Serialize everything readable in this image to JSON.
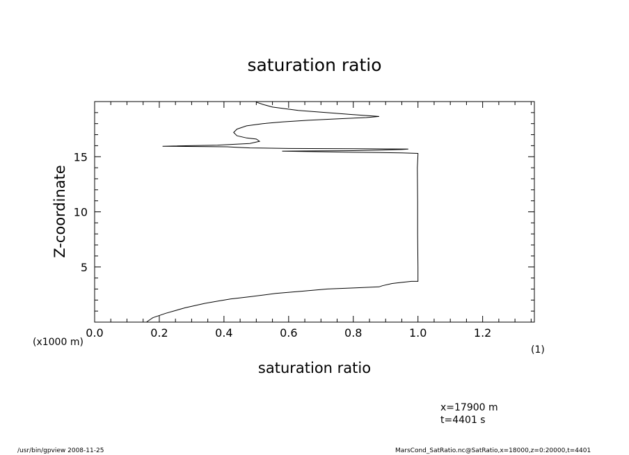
{
  "chart_data": {
    "type": "line",
    "title": "saturation ratio",
    "xlabel": "saturation ratio",
    "ylabel": "Z-coordinate",
    "x_unit_label": "(1)",
    "y_unit_label": "(x1000 m)",
    "xlim": [
      0.0,
      1.36
    ],
    "ylim": [
      0,
      20
    ],
    "xticks": [
      0.0,
      0.2,
      0.4,
      0.6,
      0.8,
      1.0,
      1.2
    ],
    "xtick_labels": [
      "0.0",
      "0.2",
      "0.4",
      "0.6",
      "0.8",
      "1.0",
      "1.2"
    ],
    "yticks": [
      5,
      10,
      15
    ],
    "ytick_labels": [
      "5",
      "10",
      "15"
    ],
    "grid": false,
    "series": [
      {
        "x": [
          0.16,
          0.18,
          0.22,
          0.28,
          0.34,
          0.38,
          0.42,
          0.48,
          0.56,
          0.64,
          0.72,
          0.8,
          0.88,
          0.89,
          0.92,
          0.95,
          0.98,
          1.0,
          1.0,
          0.999,
          0.999,
          0.998,
          1.0,
          1.0,
          0.95,
          0.88,
          0.8,
          0.58,
          0.8,
          0.88,
          0.95,
          0.97,
          0.8,
          0.6,
          0.48,
          0.44,
          0.41,
          0.21,
          0.38,
          0.48,
          0.51,
          0.5,
          0.47,
          0.44,
          0.43,
          0.44,
          0.47,
          0.52,
          0.58,
          0.66,
          0.76,
          0.84,
          0.88,
          0.83,
          0.74,
          0.63,
          0.55,
          0.52,
          0.5
        ],
        "y": [
          0.0,
          0.4,
          0.8,
          1.3,
          1.7,
          1.9,
          2.1,
          2.3,
          2.6,
          2.8,
          3.0,
          3.1,
          3.2,
          3.3,
          3.5,
          3.6,
          3.7,
          3.7,
          5.0,
          8.0,
          11.0,
          14.0,
          15.2,
          15.3,
          15.35,
          15.38,
          15.4,
          15.5,
          15.55,
          15.6,
          15.65,
          15.7,
          15.72,
          15.75,
          15.8,
          15.85,
          15.9,
          15.95,
          16.05,
          16.2,
          16.4,
          16.6,
          16.7,
          16.9,
          17.2,
          17.5,
          17.8,
          18.0,
          18.15,
          18.3,
          18.45,
          18.55,
          18.65,
          18.75,
          18.95,
          19.2,
          19.5,
          19.75,
          19.95
        ]
      }
    ]
  },
  "annotations": {
    "position_x": "x=17900  m",
    "time": "t=4401  s"
  },
  "footer": {
    "left": "/usr/bin/gpview   2008-11-25",
    "right": "MarsCond_SatRatio.nc@SatRatio,x=18000,z=0:20000,t=4401"
  }
}
